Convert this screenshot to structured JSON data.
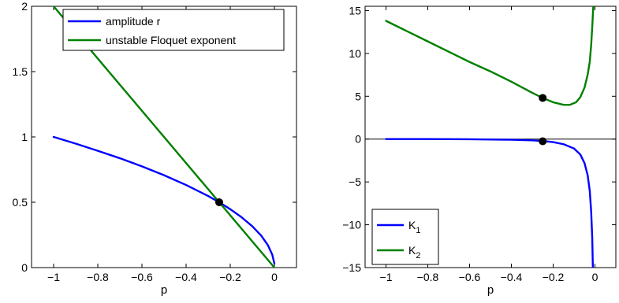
{
  "chart_data": [
    {
      "type": "line",
      "xlabel": "p",
      "ylabel": "",
      "xlim": [
        -1.1,
        0.1
      ],
      "ylim": [
        0,
        2
      ],
      "xticks": [
        -1,
        -0.8,
        -0.6,
        -0.4,
        -0.2,
        0
      ],
      "xtick_labels": [
        "−1",
        "−0.8",
        "−0.6",
        "−0.4",
        "−0.2",
        "0"
      ],
      "yticks": [
        0,
        0.5,
        1,
        1.5,
        2
      ],
      "ytick_labels": [
        "0",
        "0.5",
        "1",
        "1.5",
        "2"
      ],
      "legend_position": "top-right",
      "series": [
        {
          "name": "amplitude r",
          "color": "#0000ff",
          "x": [
            -1,
            -0.9,
            -0.8,
            -0.7,
            -0.6,
            -0.5,
            -0.4,
            -0.3,
            -0.25,
            -0.2,
            -0.15,
            -0.1,
            -0.06,
            -0.03,
            -0.01,
            0
          ],
          "y": [
            1.0,
            0.949,
            0.894,
            0.837,
            0.775,
            0.707,
            0.632,
            0.548,
            0.5,
            0.447,
            0.387,
            0.316,
            0.245,
            0.173,
            0.1,
            0.03
          ]
        },
        {
          "name": "unstable Floquet exponent",
          "color": "#008000",
          "x": [
            -1.0,
            0
          ],
          "y": [
            2.0,
            0
          ]
        }
      ],
      "markers": [
        {
          "x": -0.25,
          "y": 0.5
        }
      ]
    },
    {
      "type": "line",
      "xlabel": "p",
      "ylabel": "",
      "xlim": [
        -1.1,
        0.1
      ],
      "ylim": [
        -15,
        15.5
      ],
      "xticks": [
        -1,
        -0.8,
        -0.6,
        -0.4,
        -0.2,
        0
      ],
      "xtick_labels": [
        "−1",
        "−0.8",
        "−0.6",
        "−0.4",
        "−0.2",
        "0"
      ],
      "yticks": [
        -15,
        -10,
        -5,
        0,
        5,
        10,
        15
      ],
      "ytick_labels": [
        "−15",
        "−10",
        "−5",
        "0",
        "5",
        "10",
        "15"
      ],
      "hline": 0,
      "legend_position": "bottom-left",
      "series": [
        {
          "name": "K1",
          "label_main": "K",
          "label_sub": "1",
          "color": "#0000ff",
          "x": [
            -1,
            -0.8,
            -0.6,
            -0.4,
            -0.3,
            -0.25,
            -0.2,
            -0.15,
            -0.1,
            -0.07,
            -0.05,
            -0.035,
            -0.025,
            -0.018,
            -0.013,
            -0.01
          ],
          "y": [
            0,
            0,
            -0.02,
            -0.08,
            -0.15,
            -0.22,
            -0.35,
            -0.6,
            -1.1,
            -1.8,
            -2.8,
            -4.2,
            -6.0,
            -8.5,
            -11.5,
            -15
          ]
        },
        {
          "name": "K2",
          "label_main": "K",
          "label_sub": "2",
          "color": "#008000",
          "x": [
            -1,
            -0.9,
            -0.8,
            -0.7,
            -0.6,
            -0.5,
            -0.4,
            -0.3,
            -0.25,
            -0.2,
            -0.15,
            -0.12,
            -0.09,
            -0.07,
            -0.05,
            -0.035,
            -0.025,
            -0.018,
            -0.012,
            -0.008
          ],
          "y": [
            13.8,
            12.6,
            11.4,
            10.2,
            9.0,
            7.9,
            6.7,
            5.4,
            4.8,
            4.3,
            4.0,
            4.0,
            4.3,
            4.9,
            6.0,
            7.5,
            9.0,
            11.0,
            13.5,
            15.5
          ]
        }
      ],
      "markers": [
        {
          "x": -0.25,
          "y": 4.8
        },
        {
          "x": -0.25,
          "y": -0.25
        }
      ]
    }
  ]
}
